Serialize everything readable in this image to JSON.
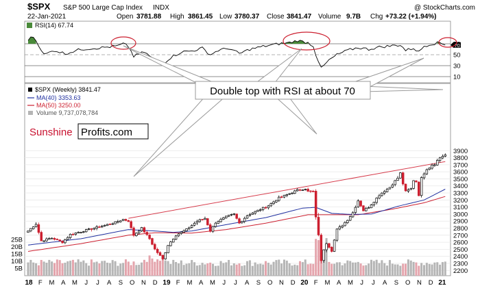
{
  "header": {
    "symbol": "$SPX",
    "name": "S&P 500 Large Cap Index",
    "exchange": "INDX",
    "date": "22-Jan-2021",
    "open_label": "Open",
    "open": "3781.88",
    "high_label": "High",
    "high": "3861.45",
    "low_label": "Low",
    "low": "3780.37",
    "close_label": "Close",
    "close": "3841.47",
    "volume_label": "Volume",
    "volume": "9.7B",
    "chg_label": "Chg",
    "chg": "+73.22 (+1.94%)",
    "source": "@ StockCharts.com"
  },
  "rsi_panel": {
    "label": "RSI(14)",
    "value": "67.74",
    "ticks": [
      "70",
      "50",
      "30",
      "10"
    ],
    "marker": "70"
  },
  "legend": {
    "price": "$SPX (Weekly) 3841.47",
    "ma40": "MA(40) 3353.63",
    "ma50": "MA(50) 3250.00",
    "volume": "Volume 9,737,078,784"
  },
  "watermark": {
    "part1": "Sunshine",
    "part2": "Profits.com"
  },
  "annotation": "Double top with RSI at about 70",
  "colors": {
    "up": "#000000",
    "down": "#cc1f2f",
    "ma40": "#1f2f9f",
    "ma50": "#cc1f2f",
    "trendline": "#d63a4a",
    "vol_up": "#b5b5b5",
    "vol_down": "#e4a4ac",
    "rsi_fill": "#4a8a3a",
    "circle": "#cc1f2f",
    "callout": "#999999",
    "watermark_red": "#c8102e"
  },
  "chart_data": {
    "type": "candlestick",
    "timeframe": "weekly",
    "price_ticks": [
      3900,
      3800,
      3700,
      3600,
      3500,
      3400,
      3300,
      3200,
      3100,
      3000,
      2900,
      2800,
      2700,
      2600,
      2500,
      2400,
      2300,
      2200
    ],
    "volume_ticks": [
      "25B",
      "20B",
      "15B",
      "10B",
      "5B"
    ],
    "rsi_ticks": [
      70,
      50,
      30,
      10
    ],
    "x_labels": [
      "18",
      "F",
      "M",
      "A",
      "M",
      "J",
      "J",
      "A",
      "S",
      "O",
      "N",
      "D",
      "19",
      "F",
      "M",
      "A",
      "M",
      "J",
      "J",
      "A",
      "S",
      "O",
      "N",
      "D",
      "20",
      "F",
      "M",
      "A",
      "M",
      "J",
      "J",
      "A",
      "S",
      "O",
      "N",
      "D",
      "21"
    ],
    "x_labels_bold": [
      "18",
      "19",
      "20",
      "21"
    ],
    "anchors": [
      {
        "t": 0,
        "c": 2760
      },
      {
        "t": 3,
        "c": 2860
      },
      {
        "t": 5,
        "c": 2620
      },
      {
        "t": 9,
        "c": 2660
      },
      {
        "t": 13,
        "c": 2600
      },
      {
        "t": 16,
        "c": 2710
      },
      {
        "t": 21,
        "c": 2760
      },
      {
        "t": 25,
        "c": 2800
      },
      {
        "t": 29,
        "c": 2840
      },
      {
        "t": 33,
        "c": 2880
      },
      {
        "t": 36,
        "c": 2925
      },
      {
        "t": 38,
        "c": 2900
      },
      {
        "t": 40,
        "c": 2700
      },
      {
        "t": 43,
        "c": 2800
      },
      {
        "t": 46,
        "c": 2650
      },
      {
        "t": 48,
        "c": 2500
      },
      {
        "t": 51,
        "c": 2360
      },
      {
        "t": 53,
        "c": 2560
      },
      {
        "t": 56,
        "c": 2700
      },
      {
        "t": 60,
        "c": 2780
      },
      {
        "t": 64,
        "c": 2900
      },
      {
        "t": 67,
        "c": 2940
      },
      {
        "t": 69,
        "c": 2760
      },
      {
        "t": 71,
        "c": 2880
      },
      {
        "t": 75,
        "c": 2960
      },
      {
        "t": 78,
        "c": 3000
      },
      {
        "t": 80,
        "c": 2870
      },
      {
        "t": 83,
        "c": 2980
      },
      {
        "t": 87,
        "c": 3050
      },
      {
        "t": 91,
        "c": 3120
      },
      {
        "t": 95,
        "c": 3230
      },
      {
        "t": 99,
        "c": 3290
      },
      {
        "t": 102,
        "c": 3340
      },
      {
        "t": 105,
        "c": 3360
      },
      {
        "t": 106,
        "c": 3320
      },
      {
        "t": 108,
        "c": 3320
      },
      {
        "t": 109,
        "c": 2950
      },
      {
        "t": 110,
        "c": 2710
      },
      {
        "t": 111,
        "c": 2330
      },
      {
        "t": 112,
        "c": 2500
      },
      {
        "t": 113,
        "c": 2590
      },
      {
        "t": 115,
        "c": 2480
      },
      {
        "t": 117,
        "c": 2780
      },
      {
        "t": 119,
        "c": 2840
      },
      {
        "t": 121,
        "c": 2920
      },
      {
        "t": 123,
        "c": 3020
      },
      {
        "t": 125,
        "c": 3190
      },
      {
        "t": 127,
        "c": 3050
      },
      {
        "t": 129,
        "c": 3100
      },
      {
        "t": 131,
        "c": 3180
      },
      {
        "t": 133,
        "c": 3270
      },
      {
        "t": 135,
        "c": 3330
      },
      {
        "t": 137,
        "c": 3380
      },
      {
        "t": 139,
        "c": 3470
      },
      {
        "t": 140,
        "c": 3510
      },
      {
        "t": 141,
        "c": 3580
      },
      {
        "t": 142,
        "c": 3430
      },
      {
        "t": 143,
        "c": 3320
      },
      {
        "t": 145,
        "c": 3360
      },
      {
        "t": 146,
        "c": 3480
      },
      {
        "t": 147,
        "c": 3460
      },
      {
        "t": 148,
        "c": 3270
      },
      {
        "t": 149,
        "c": 3510
      },
      {
        "t": 150,
        "c": 3580
      },
      {
        "t": 151,
        "c": 3640
      },
      {
        "t": 152,
        "c": 3660
      },
      {
        "t": 153,
        "c": 3700
      },
      {
        "t": 154,
        "c": 3710
      },
      {
        "t": 155,
        "c": 3760
      },
      {
        "t": 156,
        "c": 3800
      },
      {
        "t": 157,
        "c": 3824
      },
      {
        "t": 158,
        "c": 3841
      }
    ],
    "ma40_anchors": [
      {
        "t": 0,
        "v": 2560
      },
      {
        "t": 20,
        "v": 2650
      },
      {
        "t": 38,
        "v": 2780
      },
      {
        "t": 48,
        "v": 2760
      },
      {
        "t": 55,
        "v": 2740
      },
      {
        "t": 62,
        "v": 2760
      },
      {
        "t": 75,
        "v": 2850
      },
      {
        "t": 90,
        "v": 2950
      },
      {
        "t": 104,
        "v": 3085
      },
      {
        "t": 109,
        "v": 3095
      },
      {
        "t": 115,
        "v": 3010
      },
      {
        "t": 122,
        "v": 2995
      },
      {
        "t": 130,
        "v": 3000
      },
      {
        "t": 140,
        "v": 3110
      },
      {
        "t": 150,
        "v": 3200
      },
      {
        "t": 158,
        "v": 3354
      }
    ],
    "ma50_anchors": [
      {
        "t": 0,
        "v": 2470
      },
      {
        "t": 20,
        "v": 2580
      },
      {
        "t": 38,
        "v": 2700
      },
      {
        "t": 48,
        "v": 2735
      },
      {
        "t": 62,
        "v": 2730
      },
      {
        "t": 75,
        "v": 2780
      },
      {
        "t": 90,
        "v": 2870
      },
      {
        "t": 106,
        "v": 2990
      },
      {
        "t": 115,
        "v": 2990
      },
      {
        "t": 125,
        "v": 2990
      },
      {
        "t": 138,
        "v": 3070
      },
      {
        "t": 150,
        "v": 3160
      },
      {
        "t": 158,
        "v": 3250
      }
    ],
    "rsi_anchors": [
      {
        "t": 0,
        "v": 78
      },
      {
        "t": 2,
        "v": 83
      },
      {
        "t": 4,
        "v": 68
      },
      {
        "t": 6,
        "v": 50
      },
      {
        "t": 10,
        "v": 58
      },
      {
        "t": 14,
        "v": 52
      },
      {
        "t": 20,
        "v": 60
      },
      {
        "t": 28,
        "v": 63
      },
      {
        "t": 34,
        "v": 66
      },
      {
        "t": 36,
        "v": 70
      },
      {
        "t": 38,
        "v": 65
      },
      {
        "t": 40,
        "v": 47
      },
      {
        "t": 44,
        "v": 55
      },
      {
        "t": 48,
        "v": 40
      },
      {
        "t": 51,
        "v": 33
      },
      {
        "t": 54,
        "v": 45
      },
      {
        "t": 58,
        "v": 55
      },
      {
        "t": 62,
        "v": 57
      },
      {
        "t": 66,
        "v": 62
      },
      {
        "t": 69,
        "v": 50
      },
      {
        "t": 72,
        "v": 58
      },
      {
        "t": 76,
        "v": 62
      },
      {
        "t": 80,
        "v": 52
      },
      {
        "t": 84,
        "v": 60
      },
      {
        "t": 90,
        "v": 66
      },
      {
        "t": 95,
        "v": 70
      },
      {
        "t": 99,
        "v": 72
      },
      {
        "t": 102,
        "v": 76
      },
      {
        "t": 104,
        "v": 74
      },
      {
        "t": 106,
        "v": 72
      },
      {
        "t": 108,
        "v": 66
      },
      {
        "t": 109,
        "v": 50
      },
      {
        "t": 110,
        "v": 38
      },
      {
        "t": 111,
        "v": 25
      },
      {
        "t": 112,
        "v": 30
      },
      {
        "t": 114,
        "v": 40
      },
      {
        "t": 117,
        "v": 50
      },
      {
        "t": 121,
        "v": 58
      },
      {
        "t": 125,
        "v": 63
      },
      {
        "t": 129,
        "v": 60
      },
      {
        "t": 133,
        "v": 64
      },
      {
        "t": 137,
        "v": 66
      },
      {
        "t": 141,
        "v": 68
      },
      {
        "t": 143,
        "v": 58
      },
      {
        "t": 146,
        "v": 62
      },
      {
        "t": 148,
        "v": 55
      },
      {
        "t": 150,
        "v": 66
      },
      {
        "t": 153,
        "v": 70
      },
      {
        "t": 156,
        "v": 72
      },
      {
        "t": 158,
        "v": 67.74
      }
    ]
  }
}
